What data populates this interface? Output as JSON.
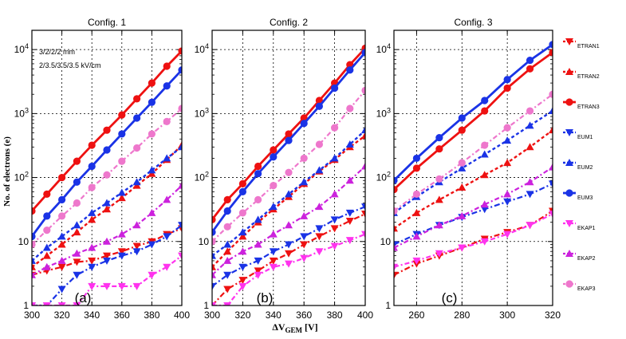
{
  "figure": {
    "ylabel": "No. of electrons (e)",
    "xlabel_main": "ΔV",
    "xlabel_sub": "GEM",
    "xlabel_unit": "[V]"
  },
  "colors": {
    "ETRAN": "#ee1111",
    "EUM": "#1a33e6",
    "EKAP1": "#ff33ee",
    "EKAP2": "#cc22dd",
    "EKAP3": "#ee77cc"
  },
  "legend": [
    {
      "key": "ETRAN1",
      "label": "ETRAN1",
      "color": "#ee1111",
      "marker": "tri-down"
    },
    {
      "key": "ETRAN2",
      "label": "ETRAN2",
      "color": "#ee1111",
      "marker": "tri-up"
    },
    {
      "key": "ETRAN3",
      "label": "ETRAN3",
      "color": "#ee1111",
      "marker": "circle"
    },
    {
      "key": "EUM1",
      "label": "EUM1",
      "color": "#1a33e6",
      "marker": "tri-down"
    },
    {
      "key": "EUM2",
      "label": "EUM2",
      "color": "#1a33e6",
      "marker": "tri-up"
    },
    {
      "key": "EUM3",
      "label": "EUM3",
      "color": "#1a33e6",
      "marker": "circle"
    },
    {
      "key": "EKAP1",
      "label": "EKAP1",
      "color": "#ff33ee",
      "marker": "tri-down"
    },
    {
      "key": "EKAP2",
      "label": "EKAP2",
      "color": "#cc22dd",
      "marker": "tri-up"
    },
    {
      "key": "EKAP3",
      "label": "EKAP3",
      "color": "#ee77cc",
      "marker": "circle"
    }
  ],
  "chart_data": [
    {
      "type": "line",
      "title": "Config. 1",
      "panel_label": "(a)",
      "notes": [
        "3/2/2/2 mm",
        "2/3.5/3.5/3.5 kV/cm"
      ],
      "xlim": [
        300,
        400
      ],
      "xticks": [
        300,
        320,
        340,
        360,
        380,
        400
      ],
      "ylim": [
        1,
        20000
      ],
      "yscale": "log",
      "yticks": [
        {
          "v": 1,
          "t": "1"
        },
        {
          "v": 10,
          "t": "10"
        },
        {
          "v": 100,
          "t": "10^2"
        },
        {
          "v": 1000,
          "t": "10^3"
        },
        {
          "v": 10000,
          "t": "10^4"
        }
      ],
      "series": [
        {
          "key": "ETRAN1",
          "x": [
            300,
            310,
            320,
            330,
            340,
            350,
            360,
            370,
            380,
            390,
            400
          ],
          "y": [
            3,
            3.5,
            4,
            4.8,
            5,
            6,
            7,
            8.5,
            10,
            13,
            16
          ]
        },
        {
          "key": "ETRAN2",
          "x": [
            300,
            310,
            320,
            330,
            340,
            350,
            360,
            370,
            380,
            390,
            400
          ],
          "y": [
            4,
            6,
            9,
            14,
            22,
            32,
            48,
            75,
            115,
            190,
            320
          ]
        },
        {
          "key": "ETRAN3",
          "x": [
            300,
            310,
            320,
            330,
            340,
            350,
            360,
            370,
            380,
            390,
            400
          ],
          "y": [
            30,
            55,
            100,
            180,
            320,
            550,
            950,
            1700,
            3000,
            5500,
            9500
          ]
        },
        {
          "key": "EUM1",
          "x": [
            300,
            310,
            320,
            330,
            340,
            350,
            360,
            370,
            380,
            390,
            400
          ],
          "y": [
            1,
            1,
            1.8,
            3,
            4,
            5,
            6,
            7,
            9,
            12,
            18
          ]
        },
        {
          "key": "EUM2",
          "x": [
            300,
            310,
            320,
            330,
            340,
            350,
            360,
            370,
            380,
            390,
            400
          ],
          "y": [
            5,
            8,
            12,
            18,
            28,
            40,
            58,
            85,
            130,
            200,
            300
          ]
        },
        {
          "key": "EUM3",
          "x": [
            300,
            310,
            320,
            330,
            340,
            350,
            360,
            370,
            380,
            390,
            400
          ],
          "y": [
            12,
            25,
            45,
            85,
            150,
            270,
            480,
            850,
            1500,
            2700,
            4800
          ]
        },
        {
          "key": "EKAP1",
          "x": [
            300,
            310,
            320,
            330,
            340,
            350,
            360,
            370,
            380,
            390,
            400
          ],
          "y": [
            1,
            1,
            1,
            1,
            2,
            2,
            2,
            2,
            3,
            4,
            6
          ]
        },
        {
          "key": "EKAP2",
          "x": [
            300,
            310,
            320,
            330,
            340,
            350,
            360,
            370,
            380,
            390,
            400
          ],
          "y": [
            3,
            4,
            5,
            6.5,
            8,
            10,
            13,
            18,
            28,
            45,
            75
          ]
        },
        {
          "key": "EKAP3",
          "x": [
            300,
            310,
            320,
            330,
            340,
            350,
            360,
            370,
            380,
            390,
            400
          ],
          "y": [
            9,
            15,
            25,
            40,
            70,
            110,
            180,
            290,
            480,
            750,
            1200
          ]
        }
      ]
    },
    {
      "type": "line",
      "title": "Config. 2",
      "panel_label": "(b)",
      "xlim": [
        300,
        400
      ],
      "xticks": [
        300,
        320,
        340,
        360,
        380,
        400
      ],
      "ylim": [
        1,
        20000
      ],
      "yscale": "log",
      "yticks": [
        {
          "v": 1,
          "t": "1"
        },
        {
          "v": 10,
          "t": "10"
        },
        {
          "v": 100,
          "t": "10^2"
        },
        {
          "v": 1000,
          "t": "10^3"
        },
        {
          "v": 10000,
          "t": "10^4"
        }
      ],
      "series": [
        {
          "key": "ETRAN1",
          "x": [
            300,
            310,
            320,
            330,
            340,
            350,
            360,
            370,
            380,
            390,
            400
          ],
          "y": [
            1,
            1.8,
            2.5,
            3.5,
            5,
            6.5,
            9,
            12,
            16,
            21,
            27
          ]
        },
        {
          "key": "ETRAN2",
          "x": [
            300,
            310,
            320,
            330,
            340,
            350,
            360,
            370,
            380,
            390,
            400
          ],
          "y": [
            4,
            7,
            12,
            20,
            32,
            50,
            80,
            125,
            190,
            300,
            450
          ]
        },
        {
          "key": "ETRAN3",
          "x": [
            300,
            310,
            320,
            330,
            340,
            350,
            360,
            370,
            380,
            390,
            400
          ],
          "y": [
            22,
            45,
            80,
            150,
            270,
            480,
            850,
            1600,
            3000,
            5800,
            10500
          ]
        },
        {
          "key": "EUM1",
          "x": [
            300,
            310,
            320,
            330,
            340,
            350,
            360,
            370,
            380,
            390,
            400
          ],
          "y": [
            2,
            3,
            4,
            5,
            7,
            9,
            12,
            16,
            22,
            28,
            35
          ]
        },
        {
          "key": "EUM2",
          "x": [
            300,
            310,
            320,
            330,
            340,
            350,
            360,
            370,
            380,
            390,
            400
          ],
          "y": [
            6,
            9,
            14,
            22,
            35,
            55,
            85,
            130,
            200,
            330,
            550
          ]
        },
        {
          "key": "EUM3",
          "x": [
            300,
            310,
            320,
            330,
            340,
            350,
            360,
            370,
            380,
            390,
            400
          ],
          "y": [
            14,
            30,
            60,
            115,
            210,
            380,
            700,
            1300,
            2500,
            4800,
            9000
          ]
        },
        {
          "key": "EKAP1",
          "x": [
            300,
            310,
            320,
            330,
            340,
            350,
            360,
            370,
            380,
            390,
            400
          ],
          "y": [
            1,
            1,
            2,
            3,
            4,
            4.5,
            5.5,
            7,
            8.5,
            10.5,
            13
          ]
        },
        {
          "key": "EKAP2",
          "x": [
            300,
            310,
            320,
            330,
            340,
            350,
            360,
            370,
            380,
            390,
            400
          ],
          "y": [
            3,
            5,
            7,
            9,
            13,
            18,
            25,
            35,
            55,
            90,
            150
          ]
        },
        {
          "key": "EKAP3",
          "x": [
            300,
            310,
            320,
            330,
            340,
            350,
            360,
            370,
            380,
            390,
            400
          ],
          "y": [
            10,
            17,
            28,
            45,
            75,
            120,
            200,
            330,
            600,
            1200,
            2300
          ]
        }
      ]
    },
    {
      "type": "line",
      "title": "Config. 3",
      "panel_label": "(c)",
      "xlim": [
        250,
        320
      ],
      "xticks": [
        260,
        280,
        300,
        320
      ],
      "ylim": [
        1,
        20000
      ],
      "yscale": "log",
      "yticks": [
        {
          "v": 1,
          "t": "1"
        },
        {
          "v": 10,
          "t": "10"
        },
        {
          "v": 100,
          "t": "10^2"
        },
        {
          "v": 1000,
          "t": "10^3"
        },
        {
          "v": 10000,
          "t": "10^4"
        }
      ],
      "series": [
        {
          "key": "ETRAN1",
          "x": [
            250,
            260,
            270,
            280,
            290,
            300,
            310,
            320
          ],
          "y": [
            3,
            4.5,
            6,
            8,
            11,
            14,
            18,
            30
          ]
        },
        {
          "key": "ETRAN2",
          "x": [
            250,
            260,
            270,
            280,
            290,
            300,
            310,
            320
          ],
          "y": [
            16,
            28,
            45,
            70,
            110,
            170,
            300,
            550
          ]
        },
        {
          "key": "ETRAN3",
          "x": [
            250,
            260,
            270,
            280,
            290,
            300,
            310,
            320
          ],
          "y": [
            65,
            140,
            280,
            550,
            1100,
            2500,
            5000,
            9000
          ]
        },
        {
          "key": "EUM1",
          "x": [
            250,
            260,
            270,
            280,
            290,
            300,
            310,
            320
          ],
          "y": [
            9,
            13,
            18,
            24,
            32,
            42,
            55,
            80
          ]
        },
        {
          "key": "EUM2",
          "x": [
            250,
            260,
            270,
            280,
            290,
            300,
            310,
            320
          ],
          "y": [
            28,
            50,
            85,
            140,
            230,
            380,
            650,
            1100
          ]
        },
        {
          "key": "EUM3",
          "x": [
            250,
            260,
            270,
            280,
            290,
            300,
            310,
            320
          ],
          "y": [
            90,
            200,
            420,
            850,
            1600,
            3400,
            6800,
            12000
          ]
        },
        {
          "key": "EKAP1",
          "x": [
            250,
            260,
            270,
            280,
            290,
            300,
            310,
            320
          ],
          "y": [
            4,
            5,
            6.5,
            8,
            10,
            13,
            18,
            27
          ]
        },
        {
          "key": "EKAP2",
          "x": [
            250,
            260,
            270,
            280,
            290,
            300,
            310,
            320
          ],
          "y": [
            8,
            12,
            18,
            25,
            38,
            55,
            85,
            145
          ]
        },
        {
          "key": "EKAP3",
          "x": [
            250,
            260,
            270,
            280,
            290,
            300,
            310,
            320
          ],
          "y": [
            30,
            55,
            95,
            170,
            320,
            600,
            1100,
            2000
          ]
        }
      ]
    }
  ]
}
